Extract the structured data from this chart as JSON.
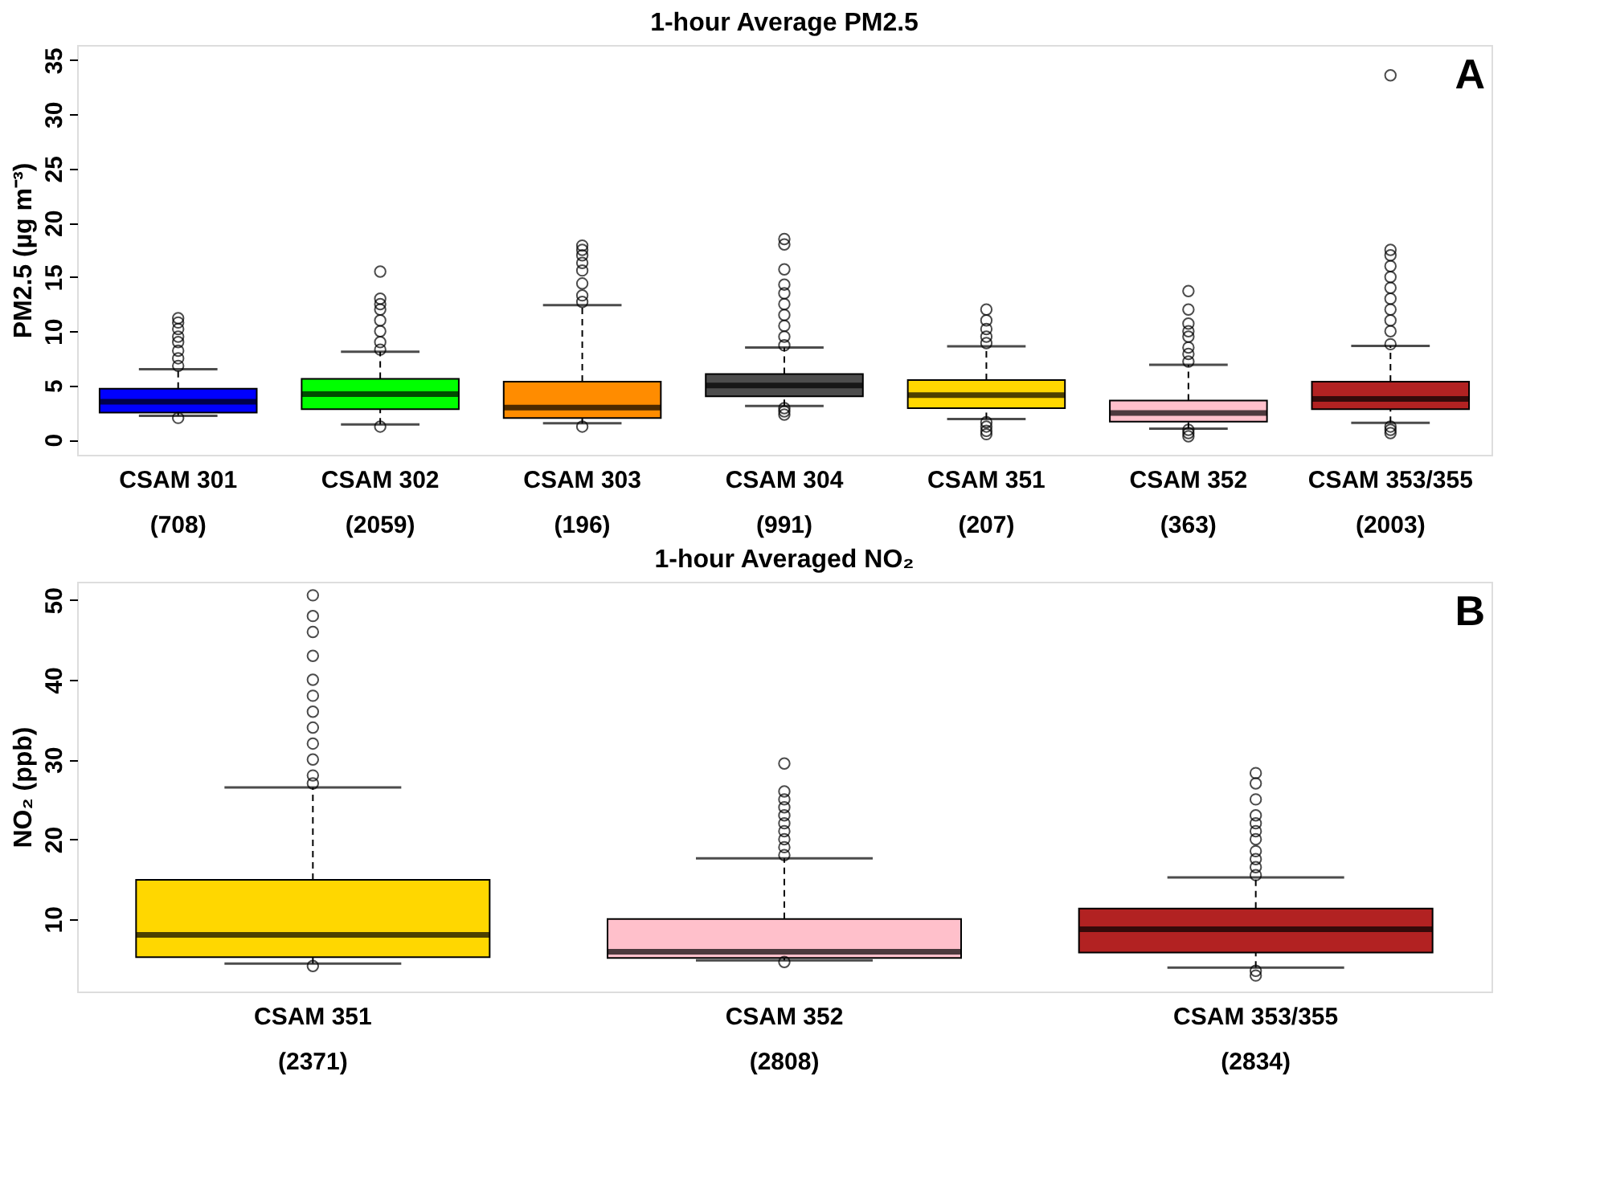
{
  "chart_data": [
    {
      "type": "box",
      "title": "1-hour Average PM2.5",
      "ylabel": "PM2.5 (µg m⁻³)",
      "annotations": [
        "A"
      ],
      "categories": [
        "CSAM 301\n(708)",
        "CSAM 302\n(2059)",
        "CSAM 303\n(196)",
        "CSAM 304\n(991)",
        "CSAM 351\n(207)",
        "CSAM 352\n(363)",
        "CSAM 353/355\n(2003)"
      ],
      "colors": [
        "#0000ff",
        "#00ff00",
        "#ff8c00",
        "#4d4d4d",
        "#ffd700",
        "#ffc0cb",
        "#b22222"
      ],
      "boxes": [
        {
          "low": 2.2,
          "q1": 2.5,
          "median": 3.5,
          "q3": 4.7,
          "high": 6.5,
          "outliers": [
            2.0,
            6.8,
            7.5,
            8.2,
            9.0,
            9.5,
            10.2,
            10.8,
            11.2
          ]
        },
        {
          "low": 1.4,
          "q1": 2.8,
          "median": 4.2,
          "q3": 5.6,
          "high": 8.1,
          "outliers": [
            1.2,
            8.3,
            9.0,
            10.0,
            11.0,
            12.0,
            12.5,
            13.0,
            15.5
          ]
        },
        {
          "low": 1.5,
          "q1": 2.0,
          "median": 2.95,
          "q3": 5.35,
          "high": 12.4,
          "outliers": [
            1.2,
            12.7,
            13.3,
            14.4,
            15.6,
            16.3,
            17.0,
            17.5,
            17.9
          ]
        },
        {
          "low": 3.1,
          "q1": 4.0,
          "median": 5.0,
          "q3": 6.05,
          "high": 8.5,
          "outliers": [
            2.3,
            2.6,
            2.9,
            8.7,
            9.5,
            10.5,
            11.5,
            12.5,
            13.5,
            14.3,
            15.7,
            18.0,
            18.5
          ]
        },
        {
          "low": 1.9,
          "q1": 2.9,
          "median": 4.1,
          "q3": 5.5,
          "high": 8.6,
          "outliers": [
            0.5,
            0.8,
            1.2,
            1.6,
            8.9,
            9.5,
            10.2,
            11.0,
            12.0
          ]
        },
        {
          "low": 1.0,
          "q1": 1.65,
          "median": 2.45,
          "q3": 3.6,
          "high": 6.9,
          "outliers": [
            0.3,
            0.6,
            0.9,
            7.2,
            7.9,
            8.5,
            9.5,
            10.0,
            10.7,
            12.0,
            13.7
          ]
        },
        {
          "low": 1.55,
          "q1": 2.8,
          "median": 3.75,
          "q3": 5.35,
          "high": 8.65,
          "outliers": [
            0.6,
            0.9,
            1.2,
            8.8,
            10.0,
            11.0,
            12.0,
            13.0,
            14.0,
            15.0,
            16.0,
            17.0,
            17.5,
            33.6
          ]
        }
      ],
      "ylim": [
        -1.4,
        36.4
      ],
      "yticks": [
        0,
        5,
        10,
        15,
        20,
        25,
        30,
        35
      ],
      "grid": false
    },
    {
      "type": "box",
      "title": "1-hour Averaged NO₂",
      "ylabel": "NO₂ (ppb)",
      "annotations": [
        "B"
      ],
      "categories": [
        "CSAM 351\n(2371)",
        "CSAM 352\n(2808)",
        "CSAM 353/355\n(2834)"
      ],
      "colors": [
        "#ffd700",
        "#ffc0cb",
        "#b22222"
      ],
      "boxes": [
        {
          "low": 4.4,
          "q1": 5.2,
          "median": 8.0,
          "q3": 14.9,
          "high": 26.5,
          "outliers": [
            4.1,
            27,
            28,
            30,
            32,
            34,
            36,
            38,
            40,
            43,
            46,
            48,
            50.6
          ]
        },
        {
          "low": 4.8,
          "q1": 5.1,
          "median": 5.9,
          "q3": 10.0,
          "high": 17.6,
          "outliers": [
            4.6,
            18,
            19,
            20,
            21,
            22,
            23,
            24,
            25,
            26,
            29.5
          ]
        },
        {
          "low": 3.9,
          "q1": 5.8,
          "median": 8.7,
          "q3": 11.3,
          "high": 15.2,
          "outliers": [
            2.9,
            3.5,
            15.5,
            16.5,
            17.5,
            18.5,
            20,
            21,
            22,
            23,
            25,
            27,
            28.3
          ]
        }
      ],
      "ylim": [
        0.9,
        52.3
      ],
      "yticks": [
        10,
        20,
        30,
        40,
        50
      ],
      "grid": false
    }
  ]
}
